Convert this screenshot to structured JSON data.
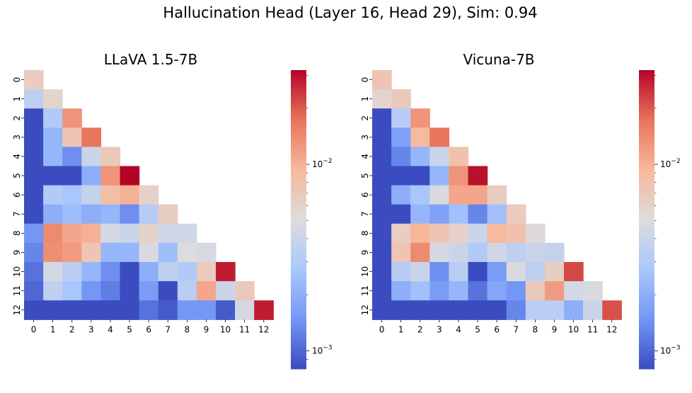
{
  "title": "Hallucination Head (Layer 16, Head 29), Sim: 0.94",
  "colors": {
    "colormap": "coolwarm",
    "stops": [
      "#3b4cc0",
      "#7396f5",
      "#aac7fd",
      "#dddcdc",
      "#f7b89c",
      "#e7745b",
      "#b40426"
    ]
  },
  "chart_data": [
    {
      "type": "heatmap",
      "title": "LLaVA 1.5-7B",
      "mask": "upper-triangle",
      "x_ticklabels": [
        "0",
        "1",
        "2",
        "3",
        "4",
        "5",
        "6",
        "7",
        "8",
        "9",
        "10",
        "11",
        "12"
      ],
      "y_ticklabels": [
        "0",
        "1",
        "2",
        "3",
        "4",
        "5",
        "6",
        "7",
        "8",
        "9",
        "10",
        "11",
        "12"
      ],
      "colorbar": {
        "scale": "log",
        "vmin": 0.0008,
        "vmax": 0.032,
        "major_ticks": [
          0.01,
          0.001
        ],
        "tick_labels": [
          "10^{-2}",
          "10^{-3}"
        ]
      },
      "values": [
        [
          0.0065
        ],
        [
          0.0035,
          0.0058
        ],
        [
          0.0008,
          0.003,
          0.013
        ],
        [
          0.0008,
          0.0022,
          0.0075,
          0.017
        ],
        [
          0.0008,
          0.0022,
          0.0014,
          0.004,
          0.007
        ],
        [
          0.0008,
          0.0008,
          0.0008,
          0.002,
          0.013,
          0.032
        ],
        [
          0.0008,
          0.003,
          0.0027,
          0.0038,
          0.0085,
          0.01,
          0.0062
        ],
        [
          0.0008,
          0.002,
          0.0024,
          0.002,
          0.0022,
          0.0014,
          0.0032,
          0.0065
        ],
        [
          0.0015,
          0.014,
          0.011,
          0.01,
          0.0045,
          0.004,
          0.006,
          0.0043,
          0.0043
        ],
        [
          0.0013,
          0.0135,
          0.012,
          0.0075,
          0.0022,
          0.0022,
          0.0048,
          0.0024,
          0.005,
          0.0047
        ],
        [
          0.0011,
          0.0045,
          0.0033,
          0.0022,
          0.0014,
          0.0008,
          0.002,
          0.0035,
          0.003,
          0.0068,
          0.028
        ],
        [
          0.001,
          0.0035,
          0.0027,
          0.0015,
          0.0012,
          0.0008,
          0.0016,
          0.0008,
          0.0033,
          0.011,
          0.004,
          0.007
        ],
        [
          0.0008,
          0.0008,
          0.0008,
          0.0008,
          0.0008,
          0.0008,
          0.0011,
          0.0009,
          0.0015,
          0.0015,
          0.0009,
          0.0045,
          0.028
        ]
      ]
    },
    {
      "type": "heatmap",
      "title": "Vicuna-7B",
      "mask": "upper-triangle",
      "x_ticklabels": [
        "0",
        "1",
        "2",
        "3",
        "4",
        "5",
        "6",
        "7",
        "8",
        "9",
        "10",
        "11",
        "12"
      ],
      "y_ticklabels": [
        "0",
        "1",
        "2",
        "3",
        "4",
        "5",
        "6",
        "7",
        "8",
        "9",
        "10",
        "11",
        "12"
      ],
      "colorbar": {
        "scale": "log",
        "vmin": 0.0008,
        "vmax": 0.032,
        "major_ticks": [
          0.01,
          0.001
        ],
        "tick_labels": [
          "10^{-2}",
          "10^{-3}"
        ]
      },
      "values": [
        [
          0.0075
        ],
        [
          0.0058,
          0.007
        ],
        [
          0.0008,
          0.0032,
          0.013
        ],
        [
          0.0008,
          0.0017,
          0.009,
          0.017
        ],
        [
          0.0008,
          0.0013,
          0.0022,
          0.004,
          0.008
        ],
        [
          0.0008,
          0.0008,
          0.0008,
          0.0022,
          0.013,
          0.03
        ],
        [
          0.0008,
          0.002,
          0.0027,
          0.0048,
          0.011,
          0.011,
          0.0065
        ],
        [
          0.0008,
          0.0008,
          0.0022,
          0.0017,
          0.0025,
          0.0013,
          0.0025,
          0.0068
        ],
        [
          0.0008,
          0.0065,
          0.0095,
          0.0075,
          0.0062,
          0.004,
          0.009,
          0.008,
          0.0052
        ],
        [
          0.0008,
          0.0075,
          0.014,
          0.0045,
          0.004,
          0.003,
          0.0043,
          0.0035,
          0.004,
          0.0037
        ],
        [
          0.0008,
          0.0032,
          0.004,
          0.0014,
          0.0033,
          0.0008,
          0.0016,
          0.0048,
          0.0035,
          0.0065,
          0.022
        ],
        [
          0.0008,
          0.002,
          0.0025,
          0.0016,
          0.0022,
          0.0011,
          0.0018,
          0.0015,
          0.007,
          0.012,
          0.0045,
          0.0048
        ],
        [
          0.0008,
          0.0008,
          0.0008,
          0.0008,
          0.0008,
          0.0008,
          0.0008,
          0.0013,
          0.0033,
          0.0033,
          0.002,
          0.004,
          0.021
        ]
      ]
    }
  ]
}
